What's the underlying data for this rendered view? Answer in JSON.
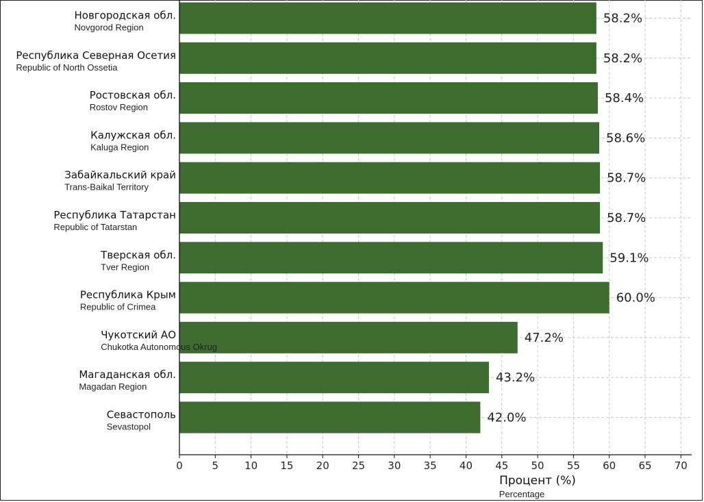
{
  "chart_data": {
    "type": "bar",
    "orientation": "horizontal",
    "categories": [
      {
        "ru": "Новгородская обл.",
        "en": "Novgorod Region"
      },
      {
        "ru": "Республика Северная Осетия",
        "en": "Republic of North Ossetia"
      },
      {
        "ru": "Ростовская обл.",
        "en": "Rostov Region"
      },
      {
        "ru": "Калужская обл.",
        "en": "Kaluga Region"
      },
      {
        "ru": "Забайкальский край",
        "en": "Trans-Baikal Territory"
      },
      {
        "ru": "Республика Татарстан",
        "en": "Republic of Tatarstan"
      },
      {
        "ru": "Тверская обл.",
        "en": "Tver Region"
      },
      {
        "ru": "Республика Крым",
        "en": "Republic of Crimea"
      },
      {
        "ru": "Чукотский АО",
        "en": "Chukotka Autonomous Okrug"
      },
      {
        "ru": "Магаданская обл.",
        "en": "Magadan Region"
      },
      {
        "ru": "Севастополь",
        "en": "Sevastopol"
      }
    ],
    "values": [
      58.2,
      58.2,
      58.4,
      58.6,
      58.7,
      58.7,
      59.1,
      60.0,
      47.2,
      43.2,
      42.0
    ],
    "value_labels": [
      "58.2%",
      "58.2%",
      "58.4%",
      "58.6%",
      "58.7%",
      "58.7%",
      "59.1%",
      "60.0%",
      "47.2%",
      "43.2%",
      "42.0%"
    ],
    "xlabel": "Процент (%)",
    "xlabel_en": "Percentage",
    "xlim": [
      0,
      71.5
    ],
    "xticks": [
      0,
      5,
      10,
      15,
      20,
      25,
      30,
      35,
      40,
      45,
      50,
      55,
      60,
      65,
      70
    ],
    "grid": true,
    "bar_color": "#3d6b30"
  }
}
